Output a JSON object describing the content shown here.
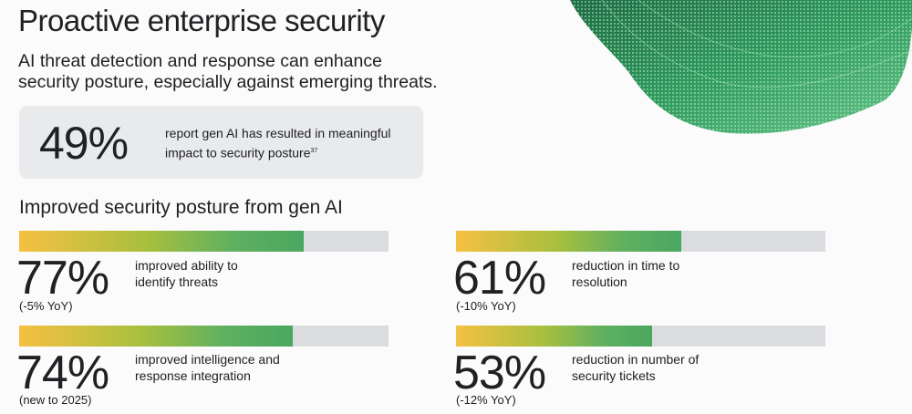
{
  "page": {
    "title": "Proactive enterprise security",
    "subtitle": "AI threat detection and response can enhance security posture, especially against emerging threats."
  },
  "highlight": {
    "value": "49%",
    "description": "report gen AI has resulted in meaningful impact to security posture",
    "footnote": "37"
  },
  "section_heading": "Improved security posture from gen AI",
  "stats": [
    {
      "value": "77%",
      "label": "improved ability to identify threats",
      "note": "(-5% YoY)"
    },
    {
      "value": "61%",
      "label": "reduction in time to resolution",
      "note": "(-10% YoY)"
    },
    {
      "value": "74%",
      "label": "improved intelligence and response integration",
      "note": "(new to 2025)"
    },
    {
      "value": "53%",
      "label": "reduction in number of security tickets",
      "note": "(-12% YoY)"
    }
  ],
  "chart_data": {
    "type": "bar",
    "title": "Improved security posture from gen AI",
    "categories": [
      "improved ability to identify threats",
      "reduction in time to resolution",
      "improved intelligence and response integration",
      "reduction in number of security tickets"
    ],
    "values": [
      77,
      61,
      74,
      53
    ],
    "notes": [
      "(-5% YoY)",
      "(-10% YoY)",
      "(new to 2025)",
      "(-12% YoY)"
    ],
    "ylim": [
      0,
      100
    ],
    "xlabel": "",
    "ylabel": ""
  },
  "colors": {
    "bar_start": "#f6c042",
    "bar_mid": "#a8bf3e",
    "bar_end": "#4aa760",
    "track": "#dadcdf",
    "card": "#e9eaeb",
    "text": "#202124"
  }
}
